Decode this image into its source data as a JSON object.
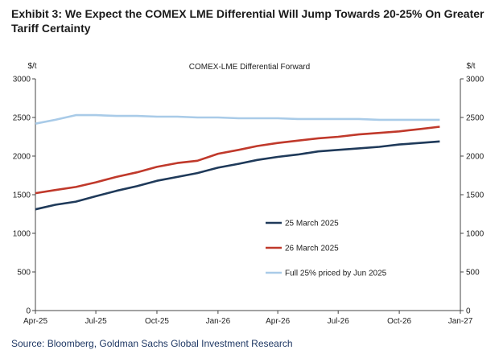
{
  "exhibit_title": "Exhibit 3: We Expect the COMEX LME Differential Will Jump Towards 20-25% On Greater Tariff Certainty",
  "source": "Source: Bloomberg, Goldman Sachs Global Investment Research",
  "colors": {
    "series_25_march": "#1f3a5a",
    "series_26_march": "#c0392b",
    "series_full_25": "#a9cbe8",
    "axis": "#444444"
  },
  "chart_data": {
    "type": "line",
    "title": "COMEX-LME  Differential Forward",
    "ylabel_left": "$/t",
    "ylabel_right": "$/t",
    "ylim": [
      0,
      3000
    ],
    "y_ticks": [
      "0",
      "500",
      "1000",
      "1500",
      "2000",
      "2500",
      "3000"
    ],
    "x_ticks": [
      "Apr-25",
      "Jul-25",
      "Oct-25",
      "Jan-26",
      "Apr-26",
      "Jul-26",
      "Oct-26",
      "Jan-27"
    ],
    "x_tick_dates": [
      "2025-04-01",
      "2025-07-01",
      "2025-10-01",
      "2026-01-01",
      "2026-04-01",
      "2026-07-01",
      "2026-10-01",
      "2027-01-01"
    ],
    "grid": false,
    "legend_position": "lower-right",
    "series": [
      {
        "name": "25 March 2025",
        "x": [
          "2025-04-01",
          "2025-05-01",
          "2025-06-01",
          "2025-07-01",
          "2025-08-01",
          "2025-09-01",
          "2025-10-01",
          "2025-11-01",
          "2025-12-01",
          "2026-01-01",
          "2026-02-01",
          "2026-03-01",
          "2026-04-01",
          "2026-05-01",
          "2026-06-01",
          "2026-07-01",
          "2026-08-01",
          "2026-09-01",
          "2026-10-01",
          "2026-11-01",
          "2026-12-01"
        ],
        "values": [
          1310,
          1370,
          1410,
          1480,
          1550,
          1610,
          1680,
          1730,
          1780,
          1850,
          1900,
          1950,
          1990,
          2020,
          2060,
          2080,
          2100,
          2120,
          2150,
          2170,
          2190
        ]
      },
      {
        "name": "26 March 2025",
        "x": [
          "2025-04-01",
          "2025-05-01",
          "2025-06-01",
          "2025-07-01",
          "2025-08-01",
          "2025-09-01",
          "2025-10-01",
          "2025-11-01",
          "2025-12-01",
          "2026-01-01",
          "2026-02-01",
          "2026-03-01",
          "2026-04-01",
          "2026-05-01",
          "2026-06-01",
          "2026-07-01",
          "2026-08-01",
          "2026-09-01",
          "2026-10-01",
          "2026-11-01",
          "2026-12-01"
        ],
        "values": [
          1520,
          1560,
          1600,
          1660,
          1730,
          1790,
          1860,
          1910,
          1940,
          2030,
          2080,
          2130,
          2170,
          2200,
          2230,
          2250,
          2280,
          2300,
          2320,
          2350,
          2380
        ]
      },
      {
        "name": "Full 25% priced by Jun 2025",
        "x": [
          "2025-04-01",
          "2025-05-01",
          "2025-06-01",
          "2025-07-01",
          "2025-08-01",
          "2025-09-01",
          "2025-10-01",
          "2025-11-01",
          "2025-12-01",
          "2026-01-01",
          "2026-02-01",
          "2026-03-01",
          "2026-04-01",
          "2026-05-01",
          "2026-06-01",
          "2026-07-01",
          "2026-08-01",
          "2026-09-01",
          "2026-10-01",
          "2026-11-01",
          "2026-12-01"
        ],
        "values": [
          2420,
          2470,
          2530,
          2530,
          2520,
          2520,
          2510,
          2510,
          2500,
          2500,
          2490,
          2490,
          2490,
          2480,
          2480,
          2480,
          2480,
          2470,
          2470,
          2470,
          2470
        ]
      }
    ]
  }
}
